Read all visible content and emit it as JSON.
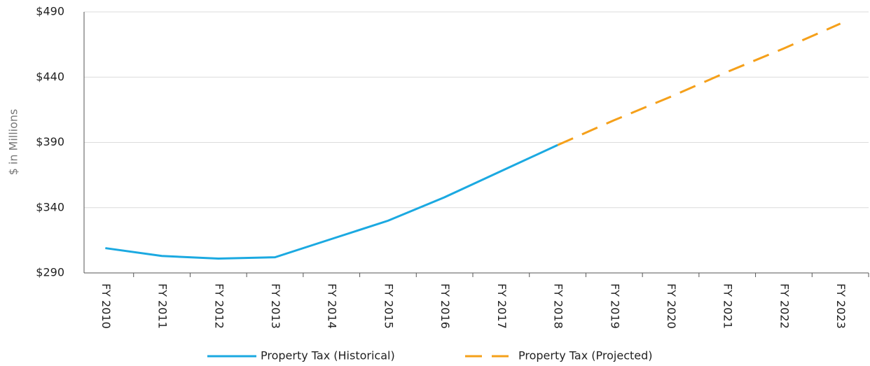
{
  "chart_data": {
    "type": "line",
    "y_label": "$ in Millions",
    "categories": [
      "FY 2010",
      "FY 2011",
      "FY 2012",
      "FY 2013",
      "FY 2014",
      "FY 2015",
      "FY 2016",
      "FY 2017",
      "FY 2018",
      "FY 2019",
      "FY 2020",
      "FY 2021",
      "FY 2022",
      "FY 2023"
    ],
    "series": [
      {
        "name": "Property Tax (Historical)",
        "color": "#1ba9e1",
        "dashed": false,
        "values": [
          309,
          303,
          301,
          302,
          316,
          330,
          348,
          368,
          388,
          null,
          null,
          null,
          null,
          null
        ]
      },
      {
        "name": "Property Tax (Projected)",
        "color": "#f5a01a",
        "dashed": true,
        "values": [
          null,
          null,
          null,
          null,
          null,
          null,
          null,
          null,
          388,
          407,
          425,
          444,
          462,
          481
        ]
      }
    ],
    "ylim": [
      290,
      490
    ],
    "yticks": [
      {
        "value": 290,
        "label": "$290"
      },
      {
        "value": 340,
        "label": "$340"
      },
      {
        "value": 390,
        "label": "$390"
      },
      {
        "value": 440,
        "label": "$440"
      },
      {
        "value": 490,
        "label": "$490"
      }
    ],
    "grid": true
  }
}
